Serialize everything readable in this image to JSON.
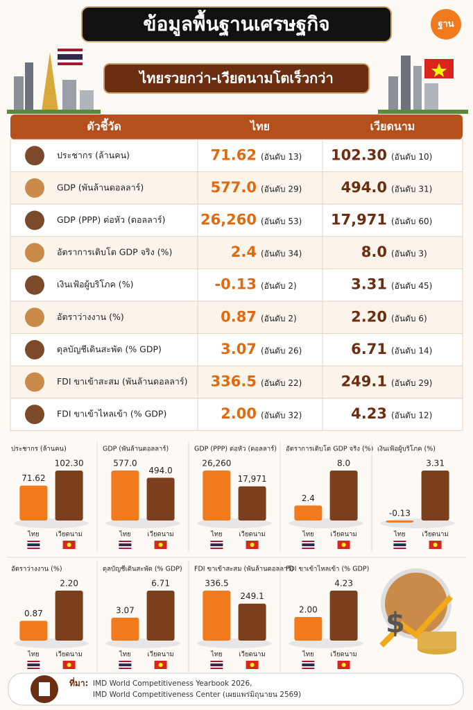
{
  "header": {
    "title": "ข้อมูลพื้นฐานเศรษฐกิจ",
    "subtitle": "ไทยรวยกว่า-เวียดนามโตเร็วกว่า",
    "logo": "ฐาน"
  },
  "table": {
    "columns": [
      "ตัวชี้วัด",
      "ไทย",
      "เวียดนาม"
    ],
    "rows": [
      [
        "ประชากร (ล้านคน)",
        "71.62",
        "(อันดับ 13)",
        "102.30",
        "(อันดับ 10)"
      ],
      [
        "GDP (พันล้านดอลลาร์)",
        "577.0",
        "(อันดับ 29)",
        "494.0",
        "(อันดับ 31)"
      ],
      [
        "GDP (PPP) ต่อหัว (ดอลลาร์)",
        "26,260",
        "(อันดับ 53)",
        "17,971",
        "(อันดับ 60)"
      ],
      [
        "อัตราการเติบโต GDP จริง (%)",
        "2.4",
        "(อันดับ 34)",
        "8.0",
        "(อันดับ 3)"
      ],
      [
        "เงินเฟ้อผู้บริโภค (%)",
        "-0.13",
        "(อันดับ 2)",
        "3.31",
        "(อันดับ 45)"
      ],
      [
        "อัตราว่างงาน (%)",
        "0.87",
        "(อันดับ 2)",
        "2.20",
        "(อันดับ 6)"
      ],
      [
        "ดุลบัญชีเดินสะพัด (% GDP)",
        "3.07",
        "(อันดับ 26)",
        "6.71",
        "(อันดับ 14)"
      ],
      [
        "FDI ขาเข้าสะสม (พันล้านดอลลาร์)",
        "336.5",
        "(อันดับ 22)",
        "249.1",
        "(อันดับ 29)"
      ],
      [
        "FDI ขาเข้าไหลเข้า (% GDP)",
        "2.00",
        "(อันดับ 32)",
        "4.23",
        "(อันดับ 12)"
      ]
    ]
  },
  "chart_data": [
    {
      "type": "bar",
      "title": "ประชากร (ล้านคน)",
      "categories": [
        "ไทย",
        "เวียดนาม"
      ],
      "values": [
        71.62,
        102.3
      ],
      "value_labels": [
        "71.62",
        "102.30"
      ],
      "colors": [
        "#f07a1c",
        "#7b3f1e"
      ]
    },
    {
      "type": "bar",
      "title": "GDP (พันล้านดอลลาร์)",
      "categories": [
        "ไทย",
        "เวียดนาม"
      ],
      "values": [
        577,
        494
      ],
      "value_labels": [
        "577.0",
        "494.0"
      ],
      "colors": [
        "#f07a1c",
        "#7b3f1e"
      ]
    },
    {
      "type": "bar",
      "title": "GDP (PPP) ต่อหัว (ดอลลาร์)",
      "categories": [
        "ไทย",
        "เวียดนาม"
      ],
      "values": [
        26260,
        17971
      ],
      "value_labels": [
        "26,260",
        "17,971"
      ],
      "colors": [
        "#f07a1c",
        "#7b3f1e"
      ]
    },
    {
      "type": "bar",
      "title": "อัตราการเติบโต GDP จริง (%)",
      "categories": [
        "ไทย",
        "เวียดนาม"
      ],
      "values": [
        2.4,
        8
      ],
      "value_labels": [
        "2.4",
        "8.0"
      ],
      "colors": [
        "#f07a1c",
        "#7b3f1e"
      ]
    },
    {
      "type": "bar",
      "title": "เงินเฟ้อผู้บริโภค (%)",
      "categories": [
        "ไทย",
        "เวียดนาม"
      ],
      "values": [
        -0.13,
        3.31
      ],
      "colors": [
        "#f07a1c",
        "#7b3f1e"
      ]
    },
    {
      "type": "bar",
      "title": "อัตราว่างงาน (%)",
      "categories": [
        "ไทย",
        "เวียดนาม"
      ],
      "values": [
        0.87,
        2.2
      ],
      "value_labels": [
        "0.87",
        "2.20"
      ],
      "colors": [
        "#f07a1c",
        "#7b3f1e"
      ]
    },
    {
      "type": "bar",
      "title": "ดุลบัญชีเดินสะพัด (% GDP)",
      "categories": [
        "ไทย",
        "เวียดนาม"
      ],
      "values": [
        3.07,
        6.71
      ],
      "colors": [
        "#f07a1c",
        "#7b3f1e"
      ]
    },
    {
      "type": "bar",
      "title": "FDI ขาเข้าสะสม (พันล้านดอลลาร์)",
      "categories": [
        "ไทย",
        "เวียดนาม"
      ],
      "values": [
        336.5,
        249.1
      ],
      "colors": [
        "#f07a1c",
        "#7b3f1e"
      ]
    },
    {
      "type": "bar",
      "title": "FDI ขาเข้าไหลเข้า (% GDP)",
      "categories": [
        "ไทย",
        "เวียดนาม"
      ],
      "values": [
        2,
        4.23
      ],
      "value_labels": [
        "2.00",
        "4.23"
      ],
      "colors": [
        "#f07a1c",
        "#7b3f1e"
      ]
    }
  ],
  "source": {
    "label": "ที่มา:",
    "lines": [
      "IMD World Competitiveness Yearbook 2026,",
      "IMD World Competitiveness Center (เผยแพร่มิถุนายน 2569)"
    ]
  }
}
